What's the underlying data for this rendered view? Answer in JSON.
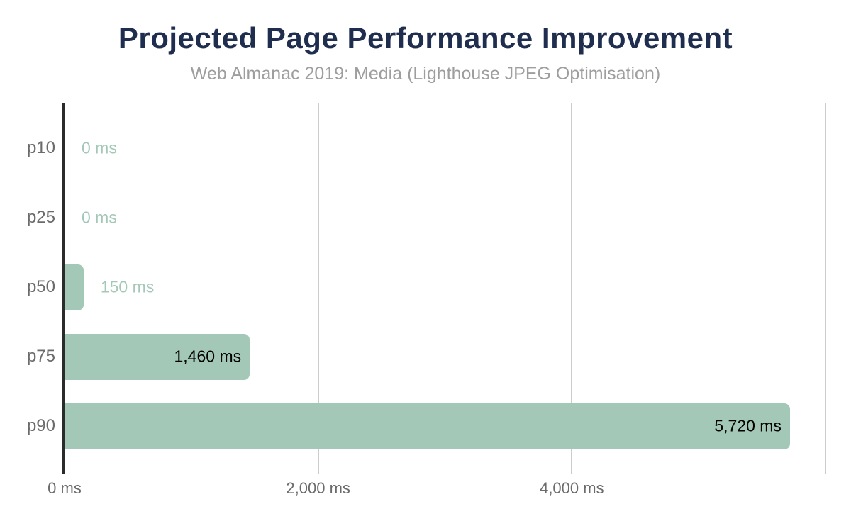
{
  "header": {
    "title": "Projected Page Performance Improvement",
    "subtitle": "Web Almanac 2019: Media (Lighthouse JPEG Optimisation)"
  },
  "chart_data": {
    "type": "bar",
    "orientation": "horizontal",
    "title": "Projected Page Performance Improvement",
    "subtitle": "Web Almanac 2019: Media (Lighthouse JPEG Optimisation)",
    "categories": [
      "p10",
      "p25",
      "p50",
      "p75",
      "p90"
    ],
    "values": [
      0,
      0,
      150,
      1460,
      5720
    ],
    "value_labels": [
      "0 ms",
      "0 ms",
      "150 ms",
      "1,460 ms",
      "5,720 ms"
    ],
    "unit": "ms",
    "xlim": [
      0,
      6000
    ],
    "xticks": [
      {
        "value": 0,
        "label": "0 ms"
      },
      {
        "value": 2000,
        "label": "2,000 ms"
      },
      {
        "value": 4000,
        "label": "4,000 ms"
      },
      {
        "value": 6000,
        "label": ""
      }
    ],
    "grid": "vertical",
    "legend": "none",
    "colors": {
      "bar": "#a4c8b7",
      "label_inside": "#000000",
      "label_outside": "#a4c8b7",
      "axis_line": "#2b2b2b",
      "gridline": "#cccccc",
      "category_label": "#6b6b6b",
      "tick_label": "#6b6b6b",
      "title": "#1f2e4e",
      "subtitle": "#9e9e9e"
    }
  }
}
